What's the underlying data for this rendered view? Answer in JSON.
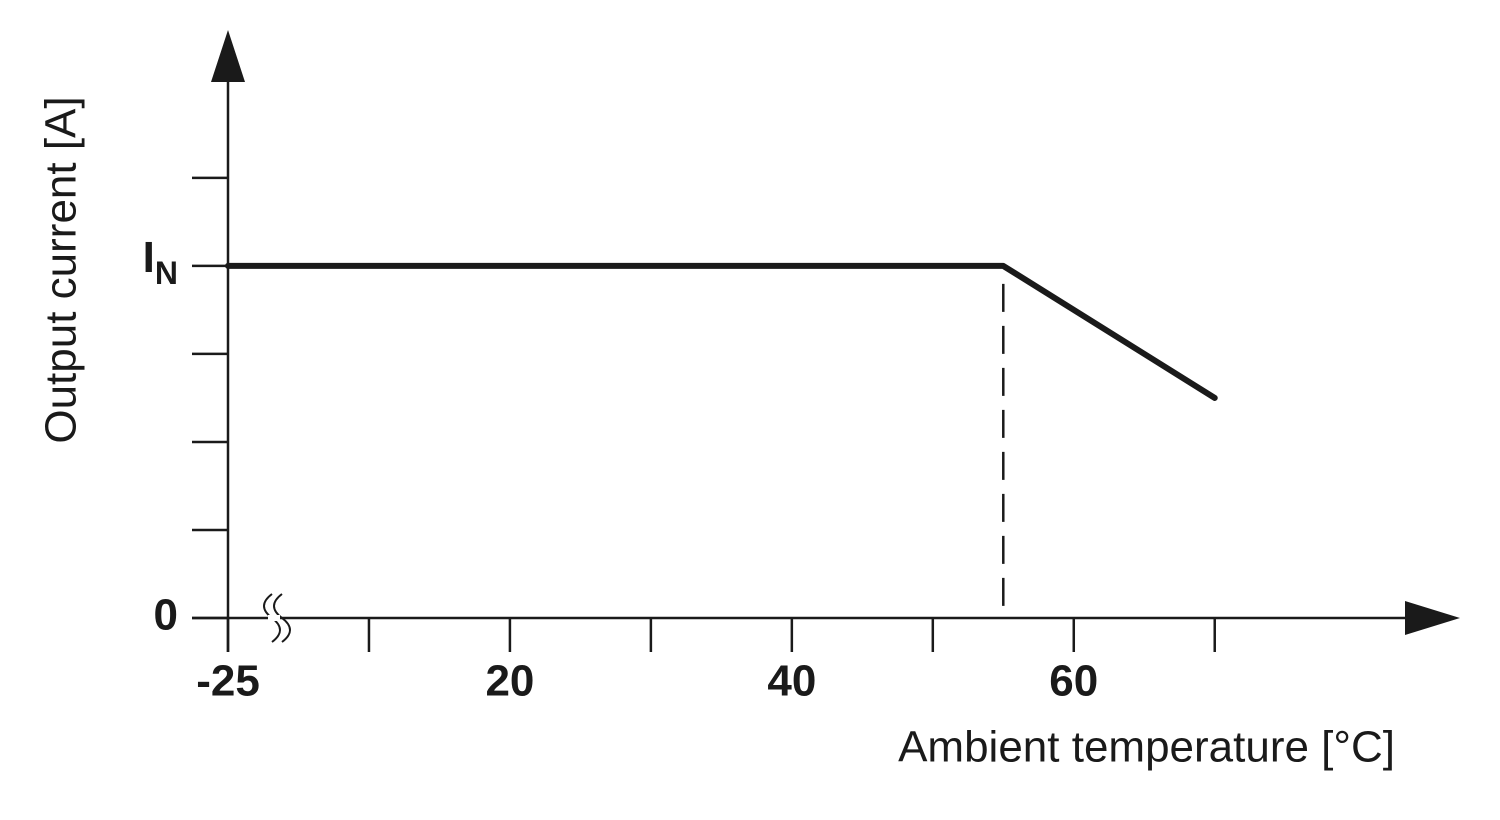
{
  "chart_data": {
    "type": "line",
    "x_label": "Ambient temperature [°C]",
    "y_label": "Output current [A]",
    "x": [
      -25,
      55,
      70
    ],
    "series": [
      {
        "color": "#1a1a1a",
        "values": [
          1,
          1,
          0.625
        ]
      }
    ],
    "xlim": [
      -25,
      87.4
    ],
    "xticks": [
      -25,
      20,
      40,
      60
    ],
    "xminor_ticks": [
      10,
      30,
      50,
      70
    ],
    "ylim": [
      0,
      1.67
    ],
    "yticks": [
      0,
      {
        "value": 1,
        "label": "IN"
      }
    ],
    "yminor_ticks": [
      0.25,
      0.5,
      0.75,
      1.25
    ],
    "x_break": true,
    "vline": 55
  }
}
